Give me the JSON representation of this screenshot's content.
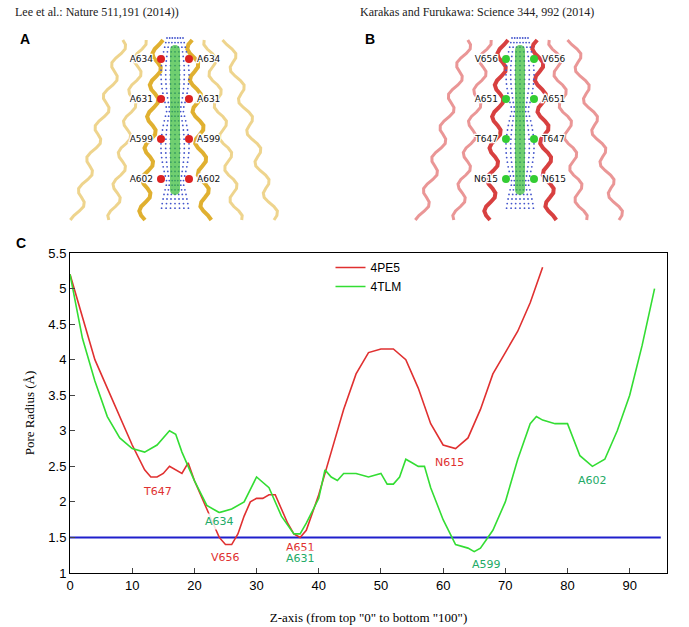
{
  "panels": [
    {
      "letter": "A",
      "header": "Lee et al.: Nature 511,191 (2014))",
      "color": "#e0b030",
      "labels": [
        "A634",
        "A634",
        "A631",
        "A631",
        "A599",
        "A599",
        "A602",
        "A602"
      ]
    },
    {
      "letter": "B",
      "header": "Karakas and Furukawa: Science 344, 992 (2014)",
      "color": "#d84040",
      "labels": [
        "V656",
        "V656",
        "A651",
        "A651",
        "T647",
        "T647",
        "N615",
        "N615"
      ]
    }
  ],
  "chart_data": {
    "type": "line",
    "panel": "C",
    "x_label": "Z-axis (from top \"0\" to bottom \"100\")",
    "y_label": "Pore Radius (Å)",
    "xlim": [
      0,
      96
    ],
    "ylim": [
      1,
      5.5
    ],
    "xticks": [
      0,
      10,
      20,
      30,
      40,
      50,
      60,
      70,
      80,
      90
    ],
    "yticks": [
      1,
      1.5,
      2,
      2.5,
      3,
      3.5,
      4,
      4.5,
      5,
      5.5
    ],
    "grid": false,
    "legend": "top",
    "series": [
      {
        "name": "4PE5",
        "color": "#e03030",
        "x": [
          0,
          2,
          4,
          6,
          8,
          10,
          12,
          13,
          14,
          15,
          16,
          17,
          18,
          19,
          20,
          22,
          24,
          25,
          26,
          27,
          28,
          29,
          30,
          31,
          32,
          33,
          34,
          35,
          36,
          37,
          38,
          40,
          42,
          44,
          46,
          48,
          50,
          52,
          54,
          56,
          58,
          60,
          62,
          64,
          66,
          68,
          70,
          72,
          74,
          76
        ],
        "values": [
          5.2,
          4.6,
          4.0,
          3.6,
          3.2,
          2.8,
          2.45,
          2.35,
          2.35,
          2.4,
          2.5,
          2.45,
          2.4,
          2.55,
          2.3,
          1.9,
          1.5,
          1.4,
          1.4,
          1.55,
          1.8,
          2.0,
          2.05,
          2.05,
          2.1,
          2.1,
          1.9,
          1.7,
          1.55,
          1.5,
          1.6,
          2.1,
          2.7,
          3.3,
          3.8,
          4.1,
          4.15,
          4.15,
          4.0,
          3.6,
          3.1,
          2.8,
          2.75,
          2.9,
          3.3,
          3.8,
          4.1,
          4.4,
          4.8,
          5.3
        ]
      },
      {
        "name": "4TLM",
        "color": "#33dd33",
        "x": [
          0,
          2,
          4,
          6,
          8,
          10,
          12,
          14,
          16,
          17,
          18,
          20,
          22,
          24,
          26,
          28,
          30,
          32,
          34,
          36,
          37,
          38,
          40,
          41,
          42,
          43,
          44,
          46,
          48,
          50,
          51,
          52,
          53,
          54,
          55,
          56,
          57,
          58,
          60,
          62,
          64,
          65,
          66,
          68,
          70,
          72,
          74,
          75,
          76,
          78,
          80,
          82,
          84,
          86,
          88,
          90,
          92,
          94
        ],
        "values": [
          5.2,
          4.3,
          3.7,
          3.2,
          2.9,
          2.75,
          2.7,
          2.8,
          3.0,
          2.95,
          2.7,
          2.3,
          1.95,
          1.85,
          1.9,
          2.0,
          2.35,
          2.2,
          1.8,
          1.55,
          1.55,
          1.7,
          2.05,
          2.45,
          2.35,
          2.3,
          2.4,
          2.4,
          2.35,
          2.4,
          2.25,
          2.25,
          2.35,
          2.6,
          2.55,
          2.5,
          2.5,
          2.2,
          1.75,
          1.4,
          1.35,
          1.3,
          1.35,
          1.6,
          2.0,
          2.6,
          3.1,
          3.2,
          3.15,
          3.1,
          3.1,
          2.65,
          2.5,
          2.6,
          3.0,
          3.5,
          4.2,
          5.0
        ]
      }
    ],
    "hlines": [
      {
        "y": 1.5,
        "x": [
          0,
          95
        ],
        "color": "#1f1fcc"
      }
    ],
    "annotations": [
      {
        "text": "T647",
        "x": 14,
        "y": 2.15,
        "color": "#e03030"
      },
      {
        "text": "A634",
        "x": 24,
        "y": 1.72,
        "color": "#22aa66"
      },
      {
        "text": "V656",
        "x": 25,
        "y": 1.22,
        "color": "#e03030"
      },
      {
        "text": "A651",
        "x": 37,
        "y": 1.36,
        "color": "#e03030"
      },
      {
        "text": "A631",
        "x": 37,
        "y": 1.2,
        "color": "#22aa66"
      },
      {
        "text": "N615",
        "x": 61,
        "y": 2.55,
        "color": "#e03030"
      },
      {
        "text": "A599",
        "x": 67,
        "y": 1.12,
        "color": "#22aa66"
      },
      {
        "text": "A602",
        "x": 84,
        "y": 2.3,
        "color": "#22aa66"
      }
    ]
  }
}
